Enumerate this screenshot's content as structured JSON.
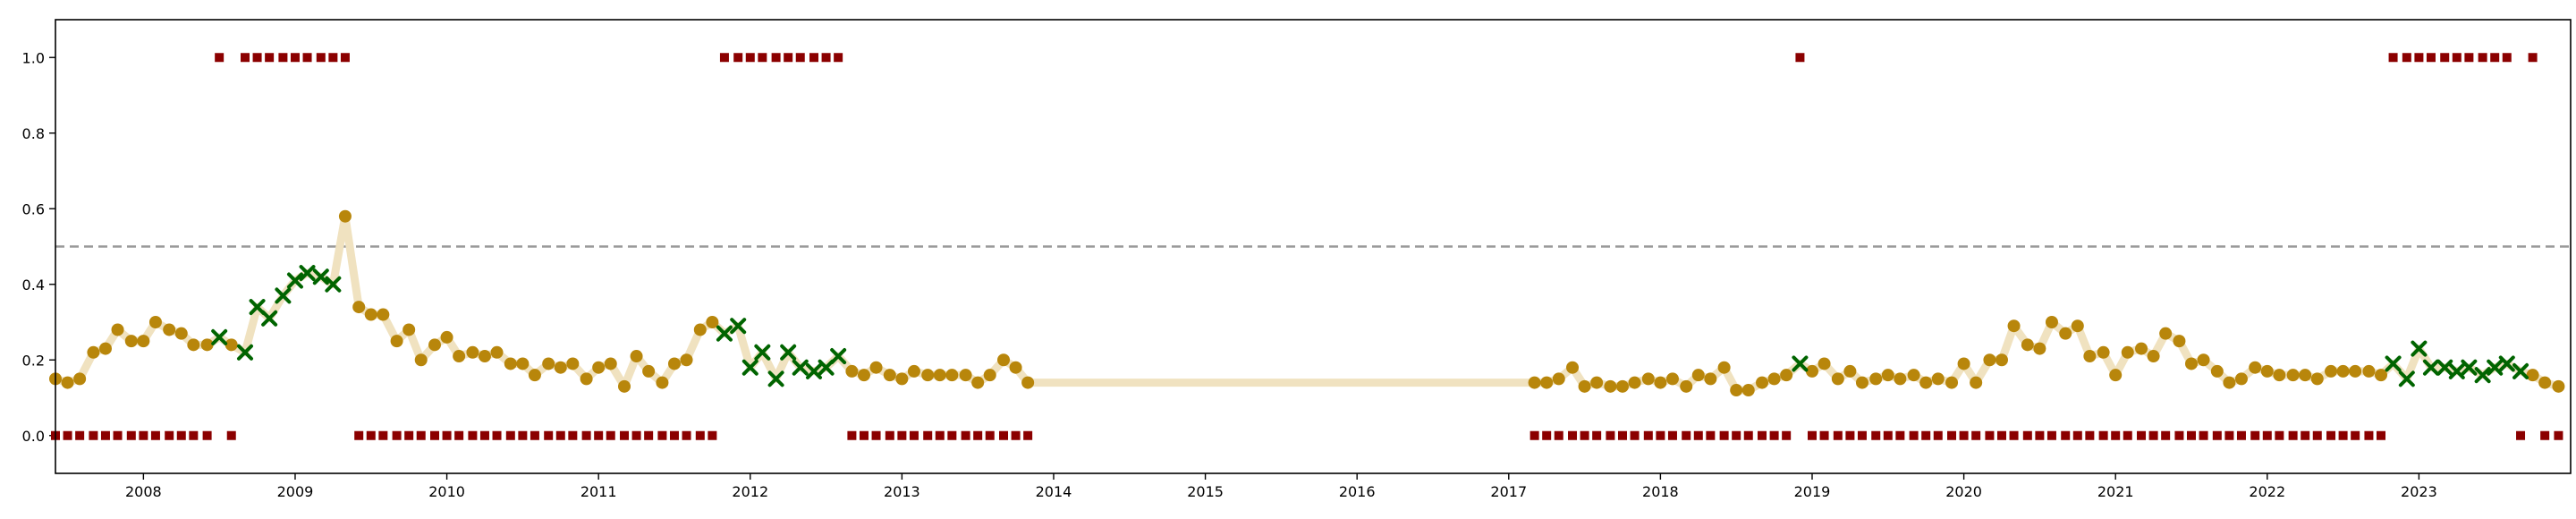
{
  "chart_data": {
    "type": "scatter",
    "title": "",
    "xlabel": "",
    "ylabel": "",
    "xlim": [
      2007.42,
      2024.0
    ],
    "ylim": [
      -0.1,
      1.1
    ],
    "yticks": [
      0.0,
      0.2,
      0.4,
      0.6,
      0.8,
      1.0
    ],
    "ytick_labels": [
      "0.0",
      "0.2",
      "0.4",
      "0.6",
      "0.8",
      "1.0"
    ],
    "xticks": [
      2008,
      2009,
      2010,
      2011,
      2012,
      2013,
      2014,
      2015,
      2016,
      2017,
      2018,
      2019,
      2020,
      2021,
      2022,
      2023
    ],
    "xtick_labels": [
      "2008",
      "2009",
      "2010",
      "2011",
      "2012",
      "2013",
      "2014",
      "2015",
      "2016",
      "2017",
      "2018",
      "2019",
      "2020",
      "2021",
      "2022",
      "2023"
    ],
    "threshold": 0.5,
    "grid": false,
    "legend": "none",
    "colors": {
      "line": "#f0e2c0",
      "dot": "#b8860b",
      "cross": "#006400",
      "square": "#8b0000",
      "threshold": "#999999"
    },
    "series": [
      {
        "marker": "circle",
        "x": [
          2007.42,
          2007.5,
          2007.58,
          2007.67,
          2007.75,
          2007.83,
          2007.92,
          2008.0,
          2008.08,
          2008.17,
          2008.25,
          2008.33,
          2008.42,
          2008.58,
          2009.33,
          2009.42,
          2009.5,
          2009.58,
          2009.67,
          2009.75,
          2009.83,
          2009.92,
          2010.0,
          2010.08,
          2010.17,
          2010.25,
          2010.33,
          2010.42,
          2010.5,
          2010.58,
          2010.67,
          2010.75,
          2010.83,
          2010.92,
          2011.0,
          2011.08,
          2011.17,
          2011.25,
          2011.33,
          2011.42,
          2011.5,
          2011.58,
          2011.67,
          2011.75,
          2012.67,
          2012.75,
          2012.83,
          2012.92,
          2013.0,
          2013.08,
          2013.17,
          2013.25,
          2013.33,
          2013.42,
          2013.5,
          2013.58,
          2013.67,
          2013.75,
          2013.83,
          2017.17,
          2017.25,
          2017.33,
          2017.42,
          2017.5,
          2017.58,
          2017.67,
          2017.75,
          2017.83,
          2017.92,
          2018.0,
          2018.08,
          2018.17,
          2018.25,
          2018.33,
          2018.42,
          2018.5,
          2018.58,
          2018.67,
          2018.75,
          2018.83,
          2019.0,
          2019.08,
          2019.17,
          2019.25,
          2019.33,
          2019.42,
          2019.5,
          2019.58,
          2019.67,
          2019.75,
          2019.83,
          2019.92,
          2020.0,
          2020.08,
          2020.17,
          2020.25,
          2020.33,
          2020.42,
          2020.5,
          2020.58,
          2020.67,
          2020.75,
          2020.83,
          2020.92,
          2021.0,
          2021.08,
          2021.17,
          2021.25,
          2021.33,
          2021.42,
          2021.5,
          2021.58,
          2021.67,
          2021.75,
          2021.83,
          2021.92,
          2022.0,
          2022.08,
          2022.17,
          2022.25,
          2022.33,
          2022.42,
          2022.5,
          2022.58,
          2022.67,
          2022.75,
          2023.75,
          2023.83,
          2023.92
        ],
        "y": [
          0.15,
          0.14,
          0.15,
          0.22,
          0.23,
          0.28,
          0.25,
          0.25,
          0.3,
          0.28,
          0.27,
          0.24,
          0.24,
          0.24,
          0.58,
          0.34,
          0.32,
          0.32,
          0.25,
          0.28,
          0.2,
          0.24,
          0.26,
          0.21,
          0.22,
          0.21,
          0.22,
          0.19,
          0.19,
          0.16,
          0.19,
          0.18,
          0.19,
          0.15,
          0.18,
          0.19,
          0.13,
          0.21,
          0.17,
          0.14,
          0.19,
          0.2,
          0.28,
          0.3,
          0.17,
          0.16,
          0.18,
          0.16,
          0.15,
          0.17,
          0.16,
          0.16,
          0.16,
          0.16,
          0.14,
          0.16,
          0.2,
          0.18,
          0.14,
          0.14,
          0.14,
          0.15,
          0.18,
          0.13,
          0.14,
          0.13,
          0.13,
          0.14,
          0.15,
          0.14,
          0.15,
          0.13,
          0.16,
          0.15,
          0.18,
          0.12,
          0.12,
          0.14,
          0.15,
          0.16,
          0.17,
          0.19,
          0.15,
          0.17,
          0.14,
          0.15,
          0.16,
          0.15,
          0.16,
          0.14,
          0.15,
          0.14,
          0.19,
          0.14,
          0.2,
          0.2,
          0.29,
          0.24,
          0.23,
          0.3,
          0.27,
          0.29,
          0.21,
          0.22,
          0.16,
          0.22,
          0.23,
          0.21,
          0.27,
          0.25,
          0.19,
          0.2,
          0.17,
          0.14,
          0.15,
          0.18,
          0.17,
          0.16,
          0.16,
          0.16,
          0.15,
          0.17,
          0.17,
          0.17,
          0.17,
          0.16,
          0.16,
          0.14,
          0.13
        ]
      },
      {
        "marker": "cross",
        "x": [
          2008.5,
          2008.67,
          2008.75,
          2008.83,
          2008.92,
          2009.0,
          2009.08,
          2009.17,
          2009.25,
          2011.83,
          2011.92,
          2012.0,
          2012.08,
          2012.17,
          2012.25,
          2012.33,
          2012.42,
          2012.5,
          2012.58,
          2018.92,
          2022.83,
          2022.92,
          2023.0,
          2023.08,
          2023.17,
          2023.25,
          2023.33,
          2023.42,
          2023.5,
          2023.58,
          2023.67
        ],
        "y": [
          0.26,
          0.22,
          0.34,
          0.31,
          0.37,
          0.41,
          0.43,
          0.42,
          0.4,
          0.27,
          0.29,
          0.18,
          0.22,
          0.15,
          0.22,
          0.18,
          0.17,
          0.18,
          0.21,
          0.19,
          0.19,
          0.15,
          0.23,
          0.18,
          0.18,
          0.17,
          0.18,
          0.16,
          0.18,
          0.19,
          0.17
        ]
      },
      {
        "marker": "square",
        "x": [
          2007.42,
          2007.5,
          2007.58,
          2007.67,
          2007.75,
          2007.83,
          2007.92,
          2008.0,
          2008.08,
          2008.17,
          2008.25,
          2008.33,
          2008.42,
          2008.5,
          2008.58,
          2008.67,
          2008.75,
          2008.83,
          2008.92,
          2009.0,
          2009.08,
          2009.17,
          2009.25,
          2009.33,
          2009.42,
          2009.5,
          2009.58,
          2009.67,
          2009.75,
          2009.83,
          2009.92,
          2010.0,
          2010.08,
          2010.17,
          2010.25,
          2010.33,
          2010.42,
          2010.5,
          2010.58,
          2010.67,
          2010.75,
          2010.83,
          2010.92,
          2011.0,
          2011.08,
          2011.17,
          2011.25,
          2011.33,
          2011.42,
          2011.5,
          2011.58,
          2011.67,
          2011.75,
          2011.83,
          2011.92,
          2012.0,
          2012.08,
          2012.17,
          2012.25,
          2012.33,
          2012.42,
          2012.5,
          2012.58,
          2012.67,
          2012.75,
          2012.83,
          2012.92,
          2013.0,
          2013.08,
          2013.17,
          2013.25,
          2013.33,
          2013.42,
          2013.5,
          2013.58,
          2013.67,
          2013.75,
          2013.83,
          2017.17,
          2017.25,
          2017.33,
          2017.42,
          2017.5,
          2017.58,
          2017.67,
          2017.75,
          2017.83,
          2017.92,
          2018.0,
          2018.08,
          2018.17,
          2018.25,
          2018.33,
          2018.42,
          2018.5,
          2018.58,
          2018.67,
          2018.75,
          2018.83,
          2018.92,
          2019.0,
          2019.08,
          2019.17,
          2019.25,
          2019.33,
          2019.42,
          2019.5,
          2019.58,
          2019.67,
          2019.75,
          2019.83,
          2019.92,
          2020.0,
          2020.08,
          2020.17,
          2020.25,
          2020.33,
          2020.42,
          2020.5,
          2020.58,
          2020.67,
          2020.75,
          2020.83,
          2020.92,
          2021.0,
          2021.08,
          2021.17,
          2021.25,
          2021.33,
          2021.42,
          2021.5,
          2021.58,
          2021.67,
          2021.75,
          2021.83,
          2021.92,
          2022.0,
          2022.08,
          2022.17,
          2022.25,
          2022.33,
          2022.42,
          2022.5,
          2022.58,
          2022.67,
          2022.75,
          2022.83,
          2022.92,
          2023.0,
          2023.08,
          2023.17,
          2023.25,
          2023.33,
          2023.42,
          2023.5,
          2023.58,
          2023.67,
          2023.75,
          2023.83,
          2023.92
        ],
        "y": [
          0,
          0,
          0,
          0,
          0,
          0,
          0,
          0,
          0,
          0,
          0,
          0,
          0,
          1,
          0,
          1,
          1,
          1,
          1,
          1,
          1,
          1,
          1,
          1,
          0,
          0,
          0,
          0,
          0,
          0,
          0,
          0,
          0,
          0,
          0,
          0,
          0,
          0,
          0,
          0,
          0,
          0,
          0,
          0,
          0,
          0,
          0,
          0,
          0,
          0,
          0,
          0,
          0,
          1,
          1,
          1,
          1,
          1,
          1,
          1,
          1,
          1,
          1,
          0,
          0,
          0,
          0,
          0,
          0,
          0,
          0,
          0,
          0,
          0,
          0,
          0,
          0,
          0,
          0,
          0,
          0,
          0,
          0,
          0,
          0,
          0,
          0,
          0,
          0,
          0,
          0,
          0,
          0,
          0,
          0,
          0,
          0,
          0,
          0,
          1,
          0,
          0,
          0,
          0,
          0,
          0,
          0,
          0,
          0,
          0,
          0,
          0,
          0,
          0,
          0,
          0,
          0,
          0,
          0,
          0,
          0,
          0,
          0,
          0,
          0,
          0,
          0,
          0,
          0,
          0,
          0,
          0,
          0,
          0,
          0,
          0,
          0,
          0,
          0,
          0,
          0,
          0,
          0,
          0,
          0,
          0,
          1,
          1,
          1,
          1,
          1,
          1,
          1,
          1,
          1,
          1,
          0,
          1,
          0,
          0
        ]
      }
    ]
  }
}
